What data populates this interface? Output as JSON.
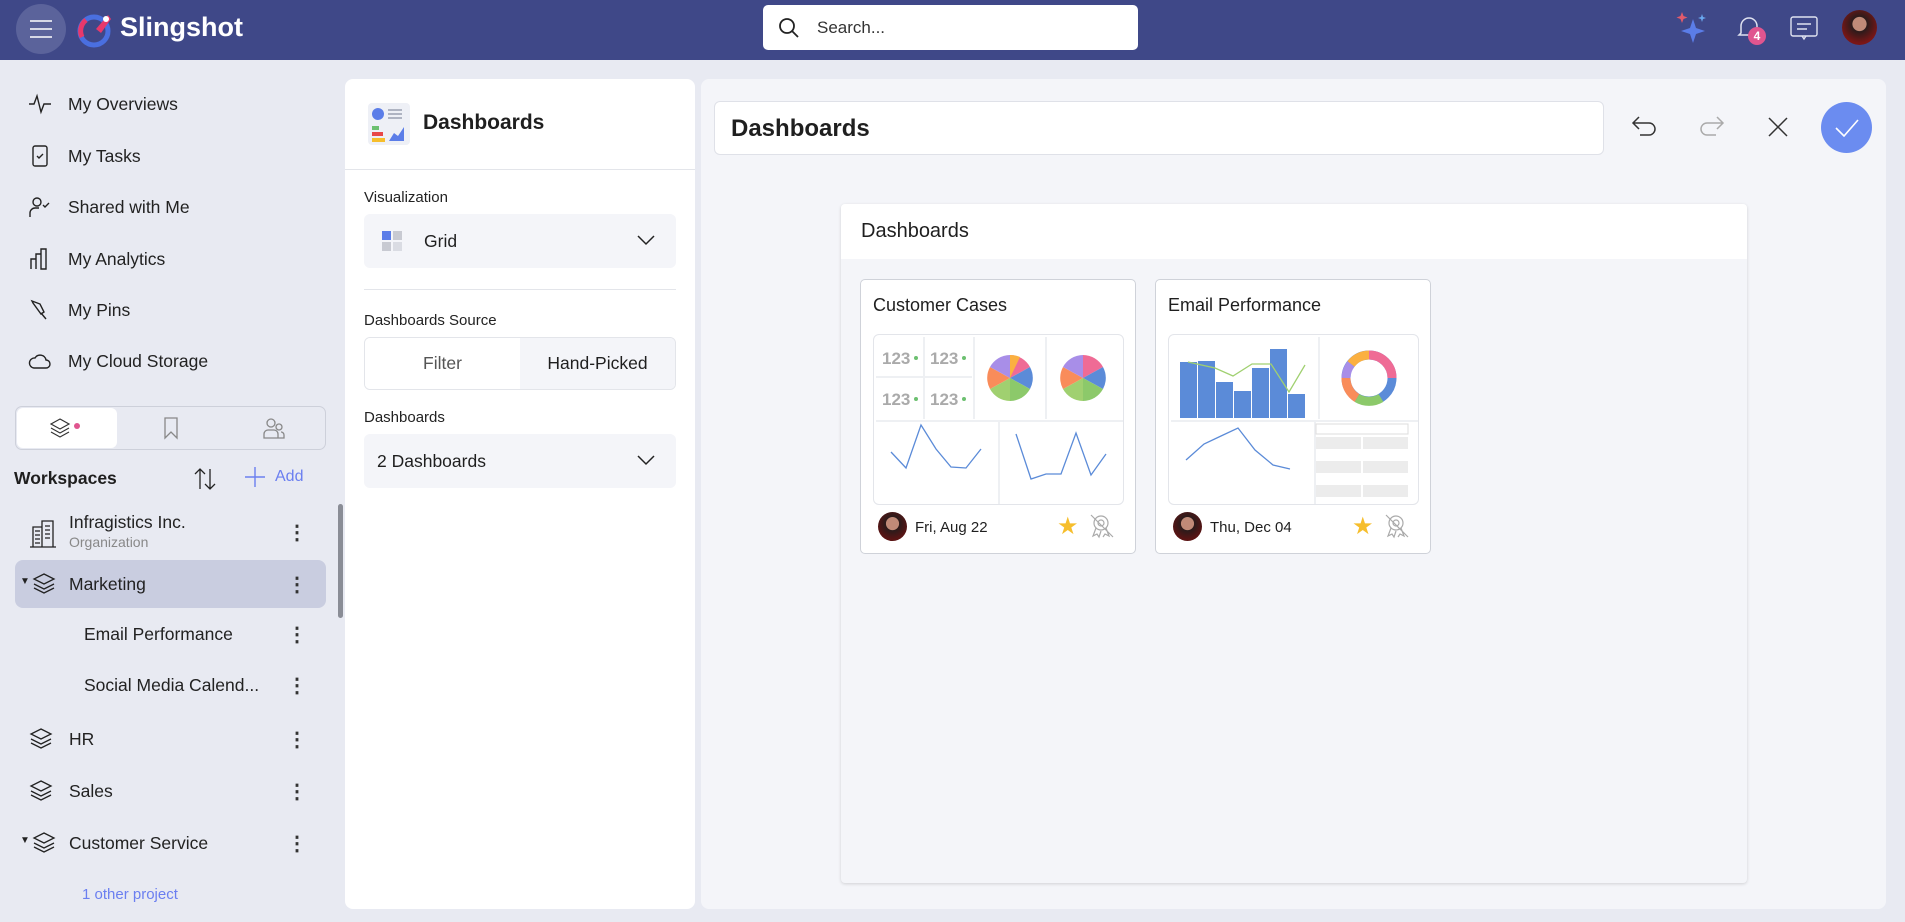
{
  "app": {
    "name": "Slingshot",
    "notifications_count": "4"
  },
  "search": {
    "placeholder": "Search..."
  },
  "sidebar": {
    "nav": [
      {
        "label": "My Overviews",
        "icon": "activity-icon"
      },
      {
        "label": "My Tasks",
        "icon": "clipboard-check-icon"
      },
      {
        "label": "Shared with Me",
        "icon": "user-check-icon"
      },
      {
        "label": "My Analytics",
        "icon": "bar-chart-icon"
      },
      {
        "label": "My Pins",
        "icon": "pin-icon"
      },
      {
        "label": "My Cloud Storage",
        "icon": "cloud-icon"
      }
    ],
    "workspaces_title": "Workspaces",
    "add_label": "Add",
    "org": {
      "name": "Infragistics Inc.",
      "type": "Organization"
    },
    "workspaces": [
      {
        "label": "Marketing",
        "selected": true,
        "expanded": true
      },
      {
        "label": "Email Performance",
        "child": true
      },
      {
        "label": "Social Media Calend...",
        "child": true
      },
      {
        "label": "HR"
      },
      {
        "label": "Sales"
      },
      {
        "label": "Customer Service",
        "expanded": true
      }
    ],
    "other_projects": "1 other project"
  },
  "panel": {
    "title": "Dashboards",
    "visualization_label": "Visualization",
    "visualization_value": "Grid",
    "source_label": "Dashboards Source",
    "source_options": [
      "Filter",
      "Hand-Picked"
    ],
    "source_selected": "Hand-Picked",
    "dashboards_label": "Dashboards",
    "dashboards_value": "2 Dashboards"
  },
  "main": {
    "title": "Dashboards",
    "canvas_title": "Dashboards",
    "cards": [
      {
        "title": "Customer Cases",
        "date": "Fri, Aug 22",
        "favorite": true,
        "kpi": "123"
      },
      {
        "title": "Email Performance",
        "date": "Thu, Dec 04",
        "favorite": true
      }
    ]
  },
  "colors": {
    "topbar": "#3f4888",
    "accent": "#6b8cf0",
    "star": "#f6be2c",
    "link": "#6b7ff0"
  }
}
